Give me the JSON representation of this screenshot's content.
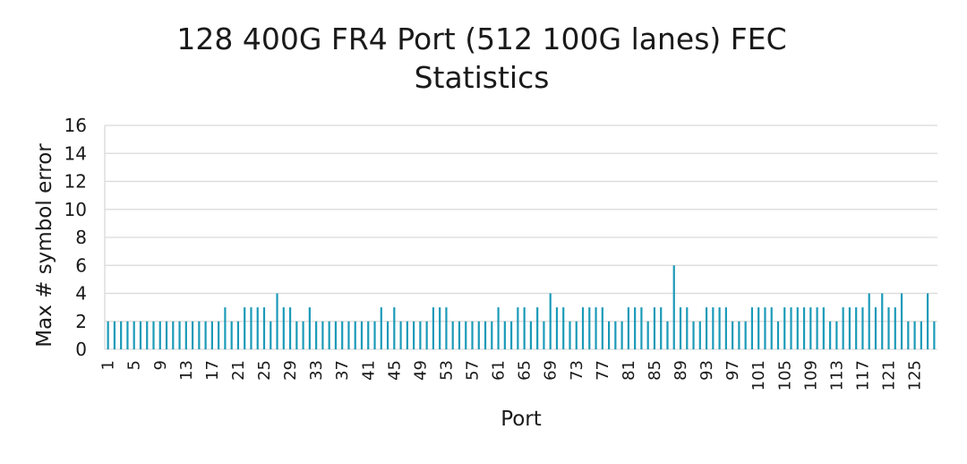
{
  "chart_data": {
    "type": "bar",
    "title": "128 400G FR4 Port (512 100G lanes) FEC Statistics",
    "title_lines": [
      "128 400G FR4 Port (512 100G lanes) FEC",
      "Statistics"
    ],
    "xlabel": "Port",
    "ylabel": "Max # symbol error",
    "ylim": [
      0,
      16
    ],
    "yticks": [
      0,
      2,
      4,
      6,
      8,
      10,
      12,
      14,
      16
    ],
    "categories": [
      1,
      2,
      3,
      4,
      5,
      6,
      7,
      8,
      9,
      10,
      11,
      12,
      13,
      14,
      15,
      16,
      17,
      18,
      19,
      20,
      21,
      22,
      23,
      24,
      25,
      26,
      27,
      28,
      29,
      30,
      31,
      32,
      33,
      34,
      35,
      36,
      37,
      38,
      39,
      40,
      41,
      42,
      43,
      44,
      45,
      46,
      47,
      48,
      49,
      50,
      51,
      52,
      53,
      54,
      55,
      56,
      57,
      58,
      59,
      60,
      61,
      62,
      63,
      64,
      65,
      66,
      67,
      68,
      69,
      70,
      71,
      72,
      73,
      74,
      75,
      76,
      77,
      78,
      79,
      80,
      81,
      82,
      83,
      84,
      85,
      86,
      87,
      88,
      89,
      90,
      91,
      92,
      93,
      94,
      95,
      96,
      97,
      98,
      99,
      100,
      101,
      102,
      103,
      104,
      105,
      106,
      107,
      108,
      109,
      110,
      111,
      112,
      113,
      114,
      115,
      116,
      117,
      118,
      119,
      120,
      121,
      122,
      123,
      124,
      125,
      126,
      127,
      128
    ],
    "xtick_labels": [
      1,
      5,
      9,
      13,
      17,
      21,
      25,
      29,
      33,
      37,
      41,
      45,
      49,
      53,
      57,
      61,
      65,
      69,
      73,
      77,
      81,
      85,
      89,
      93,
      97,
      101,
      105,
      109,
      113,
      117,
      121,
      125
    ],
    "values": [
      2,
      2,
      2,
      2,
      2,
      2,
      2,
      2,
      2,
      2,
      2,
      2,
      2,
      2,
      2,
      2,
      2,
      2,
      3,
      2,
      2,
      3,
      3,
      3,
      3,
      2,
      4,
      3,
      3,
      2,
      2,
      3,
      2,
      2,
      2,
      2,
      2,
      2,
      2,
      2,
      2,
      2,
      3,
      2,
      3,
      2,
      2,
      2,
      2,
      2,
      3,
      3,
      3,
      2,
      2,
      2,
      2,
      2,
      2,
      2,
      3,
      2,
      2,
      3,
      3,
      2,
      3,
      2,
      4,
      3,
      3,
      2,
      2,
      3,
      3,
      3,
      3,
      2,
      2,
      2,
      3,
      3,
      3,
      2,
      3,
      3,
      2,
      6,
      3,
      3,
      2,
      2,
      3,
      3,
      3,
      3,
      2,
      2,
      2,
      3,
      3,
      3,
      3,
      2,
      3,
      3,
      3,
      3,
      3,
      3,
      3,
      2,
      2,
      3,
      3,
      3,
      3,
      4,
      3,
      4,
      3,
      3,
      4,
      2,
      2,
      2,
      4,
      2
    ],
    "colors": {
      "bar": "#1a9ab8"
    },
    "grid": true,
    "legend": false
  }
}
